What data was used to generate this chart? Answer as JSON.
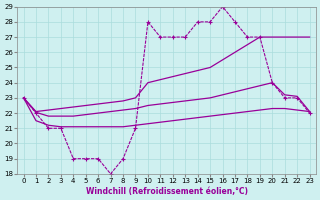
{
  "xlabel": "Windchill (Refroidissement éolien,°C)",
  "background_color": "#cff0f0",
  "grid_color": "#aadddd",
  "line_color": "#990099",
  "xmin": 0,
  "xmax": 23,
  "ymin": 18,
  "ymax": 29,
  "hours": [
    0,
    1,
    2,
    3,
    4,
    5,
    6,
    7,
    8,
    9,
    10,
    11,
    12,
    13,
    14,
    15,
    16,
    17,
    18,
    19,
    20,
    21,
    22,
    23
  ],
  "line_spiky": [
    23,
    22,
    21,
    21,
    19,
    19,
    19,
    18,
    19,
    21,
    28,
    27,
    27,
    27,
    28,
    28,
    29,
    28,
    27,
    27,
    24,
    23,
    23,
    22
  ],
  "line_upper": [
    23,
    22.1,
    22.2,
    22.3,
    22.4,
    22.5,
    22.6,
    22.7,
    22.8,
    23.0,
    24.0,
    24.2,
    24.4,
    24.6,
    24.8,
    25.0,
    25.5,
    26.0,
    26.5,
    27.0,
    27.0,
    27.0,
    27.0,
    27.0
  ],
  "line_mid": [
    23,
    22.05,
    21.8,
    21.8,
    21.8,
    21.9,
    22.0,
    22.1,
    22.2,
    22.3,
    22.5,
    22.6,
    22.7,
    22.8,
    22.9,
    23.0,
    23.2,
    23.4,
    23.6,
    23.8,
    24.0,
    23.2,
    23.1,
    22.1
  ],
  "line_lower": [
    23,
    21.5,
    21.2,
    21.1,
    21.1,
    21.1,
    21.1,
    21.1,
    21.1,
    21.2,
    21.3,
    21.4,
    21.5,
    21.6,
    21.7,
    21.8,
    21.9,
    22.0,
    22.1,
    22.2,
    22.3,
    22.3,
    22.2,
    22.1
  ]
}
